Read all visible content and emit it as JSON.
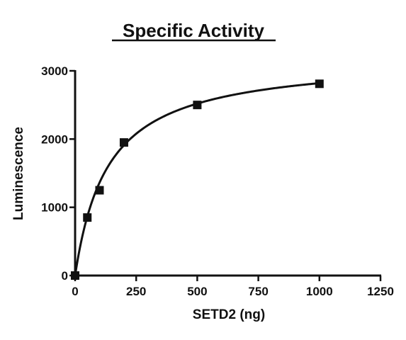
{
  "chart_data": {
    "type": "scatter",
    "title": "Specific Activity",
    "xlabel": "SETD2 (ng)",
    "ylabel": "Luminescence",
    "xlim": [
      0,
      1250
    ],
    "ylim": [
      0,
      3000
    ],
    "x_ticks": [
      0,
      250,
      500,
      750,
      1000,
      1250
    ],
    "y_ticks": [
      0,
      1000,
      2000,
      3000
    ],
    "x_tick_labels": [
      "0",
      "250",
      "500",
      "750",
      "1000",
      "1250"
    ],
    "y_tick_labels": [
      "0",
      "1000",
      "2000",
      "3000"
    ],
    "grid": false,
    "legend": "none",
    "marker": "square",
    "marker_color": "#111111",
    "points": [
      {
        "x": 0,
        "y": 0
      },
      {
        "x": 50,
        "y": 850
      },
      {
        "x": 100,
        "y": 1250
      },
      {
        "x": 200,
        "y": 1950
      },
      {
        "x": 500,
        "y": 2500
      },
      {
        "x": 1000,
        "y": 2810
      }
    ],
    "fit": {
      "model": "hyperbola",
      "vmax": 3200,
      "k": 135,
      "color": "#111111",
      "x_range": [
        0,
        1000
      ]
    }
  }
}
